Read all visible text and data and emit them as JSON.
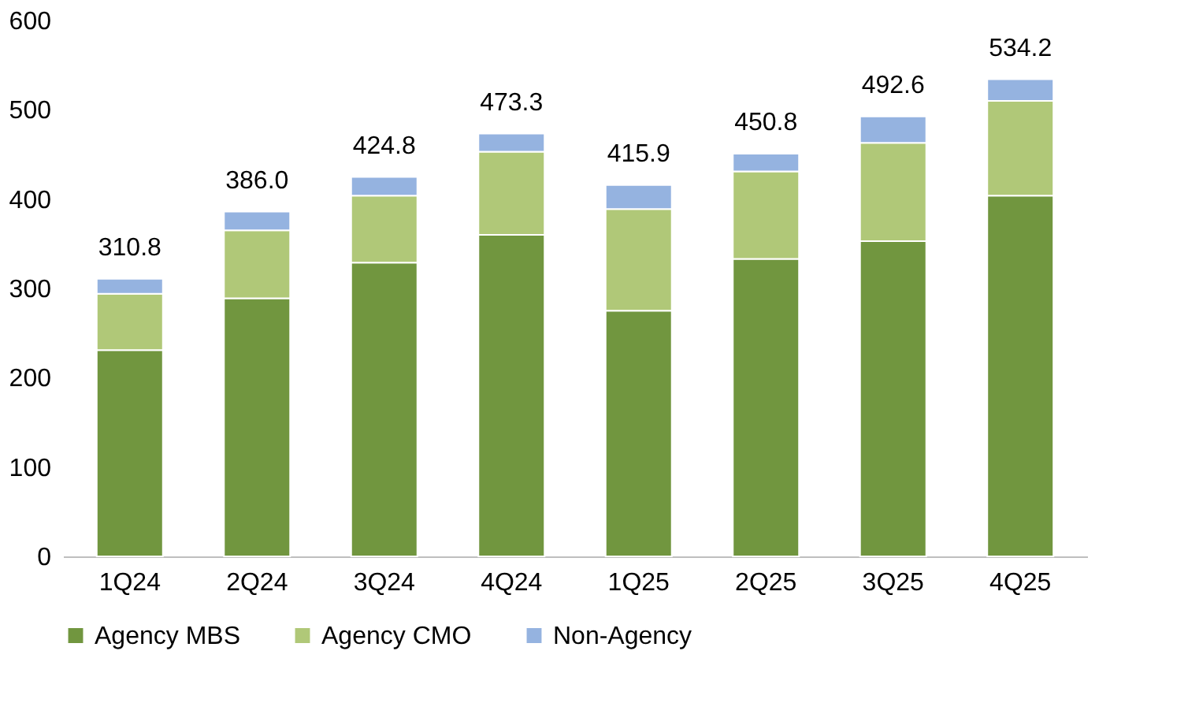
{
  "chart_data": {
    "type": "bar",
    "stacked": true,
    "categories": [
      "1Q24",
      "2Q24",
      "3Q24",
      "4Q24",
      "1Q25",
      "2Q25",
      "3Q25",
      "4Q25"
    ],
    "series": [
      {
        "name": "Agency MBS",
        "color": "#71963f",
        "values": [
          231,
          289,
          329,
          360,
          275,
          333,
          353,
          404
        ]
      },
      {
        "name": "Agency CMO",
        "color": "#b0c878",
        "values": [
          63,
          76,
          75,
          93,
          114,
          98,
          110,
          106
        ]
      },
      {
        "name": "Non-Agency",
        "color": "#95b3e0",
        "values": [
          16.8,
          21,
          20.8,
          20.3,
          26.9,
          19.8,
          29.6,
          24.2
        ]
      }
    ],
    "totals": [
      "310.8",
      "386.0",
      "424.8",
      "473.3",
      "415.9",
      "450.8",
      "492.6",
      "534.2"
    ],
    "ylim": [
      0,
      600
    ],
    "yticks": [
      0,
      100,
      200,
      300,
      400,
      500,
      600
    ],
    "grid": false,
    "legend": "bottom"
  }
}
